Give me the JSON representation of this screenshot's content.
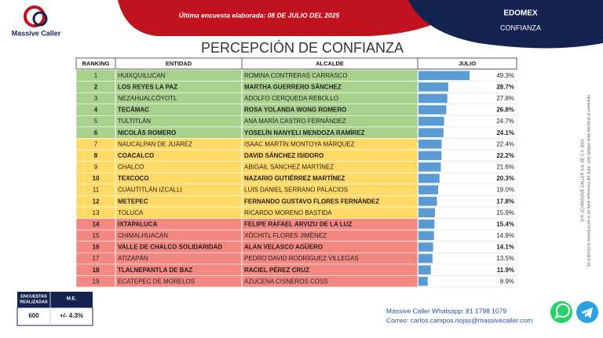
{
  "header": {
    "brand": "Massive Caller",
    "survey_date": "Última encuesta elaborada: 08 DE JULIO DEL 2025",
    "region": "EDOMEX",
    "topic": "CONFIANZA"
  },
  "title": "PERCEPCIÓN DE CONFIANZA",
  "table": {
    "columns": [
      "RANKING",
      "ENTIDAD",
      "ALCALDE",
      "JULIO"
    ],
    "rows": [
      {
        "ranking": 1,
        "entidad": "HUIXQUILUCAN",
        "alcalde": "ROMINA CONTRERAS CARRASCO",
        "julio": 49.3,
        "julio_label": "49.3%",
        "color": "#a9d18e"
      },
      {
        "ranking": 2,
        "entidad": "LOS REYES LA PAZ",
        "alcalde": "MARTHA GUERRERO SÁNCHEZ",
        "julio": 28.7,
        "julio_label": "28.7%",
        "color": "#a9d18e"
      },
      {
        "ranking": 3,
        "entidad": "NEZAHUALCÓYOTL",
        "alcalde": "ADOLFO CERQUEDA REBOLLO",
        "julio": 27.8,
        "julio_label": "27.8%",
        "color": "#a9d18e"
      },
      {
        "ranking": 4,
        "entidad": "TECÁMAC",
        "alcalde": "ROSA YOLANDA WONG ROMERO",
        "julio": 26.8,
        "julio_label": "26.8%",
        "color": "#a9d18e"
      },
      {
        "ranking": 5,
        "entidad": "TULTITLÁN",
        "alcalde": "ANA MARÍA CASTRO FERNÁNDEZ",
        "julio": 24.7,
        "julio_label": "24.7%",
        "color": "#a9d18e"
      },
      {
        "ranking": 6,
        "entidad": "NICOLÁS ROMERO",
        "alcalde": "YOSELÍN NANYELI MENDOZA RAMÍREZ",
        "julio": 24.1,
        "julio_label": "24.1%",
        "color": "#a9d18e"
      },
      {
        "ranking": 7,
        "entidad": "NAUCALPAN DE JUÁREZ",
        "alcalde": "ISAAC MARTÍN MONTOYA MÁRQUEZ",
        "julio": 22.4,
        "julio_label": "22.4%",
        "color": "#ffd966"
      },
      {
        "ranking": 8,
        "entidad": "COACALCO",
        "alcalde": "DAVID SÁNCHEZ ISIDORO",
        "julio": 22.2,
        "julio_label": "22.2%",
        "color": "#ffd966"
      },
      {
        "ranking": 9,
        "entidad": "CHALCO",
        "alcalde": "ABIGAIL SÁNCHEZ MARTÍNEZ",
        "julio": 21.6,
        "julio_label": "21.6%",
        "color": "#ffd966"
      },
      {
        "ranking": 10,
        "entidad": "TEXCOCO",
        "alcalde": "NAZARIO GUTIÉRREZ MARTÍNEZ",
        "julio": 20.3,
        "julio_label": "20.3%",
        "color": "#ffd966"
      },
      {
        "ranking": 11,
        "entidad": "CUAUTITLÁN IZCALLI",
        "alcalde": "LUIS DANIEL SERRANO PALACIOS",
        "julio": 19.0,
        "julio_label": "19.0%",
        "color": "#ffd966"
      },
      {
        "ranking": 12,
        "entidad": "METEPEC",
        "alcalde": "FERNANDO GUSTAVO FLORES FERNÁNDEZ",
        "julio": 17.8,
        "julio_label": "17.8%",
        "color": "#ffd966"
      },
      {
        "ranking": 13,
        "entidad": "TOLUCA",
        "alcalde": "RICARDO MORENO BASTIDA",
        "julio": 15.9,
        "julio_label": "15.9%",
        "color": "#ffd966"
      },
      {
        "ranking": 14,
        "entidad": "IXTAPALUCA",
        "alcalde": "FELIPE RAFAEL ARVIZU DE LA LUZ",
        "julio": 15.4,
        "julio_label": "15.4%",
        "color": "#f4877f"
      },
      {
        "ranking": 15,
        "entidad": "CHIMALHUACÁN",
        "alcalde": "XÓCHITL FLORES JIMÉNEZ",
        "julio": 14.9,
        "julio_label": "14.9%",
        "color": "#f4877f"
      },
      {
        "ranking": 16,
        "entidad": "VALLE DE CHALCO SOLIDARIDAD",
        "alcalde": "ALAN VELASCO AGÜERO",
        "julio": 14.1,
        "julio_label": "14.1%",
        "color": "#f4877f"
      },
      {
        "ranking": 17,
        "entidad": "ATIZAPÁN",
        "alcalde": "PEDRO DAVID RODRÍGUEZ VILLEGAS",
        "julio": 13.5,
        "julio_label": "13.5%",
        "color": "#f4877f"
      },
      {
        "ranking": 18,
        "entidad": "TLALNEPANTLA DE BAZ",
        "alcalde": "RACIEL PÉREZ CRUZ",
        "julio": 11.9,
        "julio_label": "11.9%",
        "color": "#f4877f"
      },
      {
        "ranking": 19,
        "entidad": "ECATEPEC DE MORELOS",
        "alcalde": "AZUCENA CISNEROS COSS",
        "julio": 8.9,
        "julio_label": "8.9%",
        "color": "#f4877f"
      }
    ]
  },
  "survey_box": {
    "label_1": "ENCUESTAS",
    "label_2": "REALIZADAS",
    "label_me": "M.E.",
    "count": 600,
    "margin": "+/- 4.3%"
  },
  "contact": {
    "whatsapp": "Massive Caller Whatsapp: 81 1798 1079",
    "email": "Correo: carlos.campos.riojas@massivecaller.com"
  },
  "legal": {
    "copyright": "D.R. (C) MASSIVE CALLER S.A. DE C.V. 2024",
    "notice": "Se autoriza la reproducción si se hace referencia del autor, solo aplique veda electoral al contenido."
  }
}
